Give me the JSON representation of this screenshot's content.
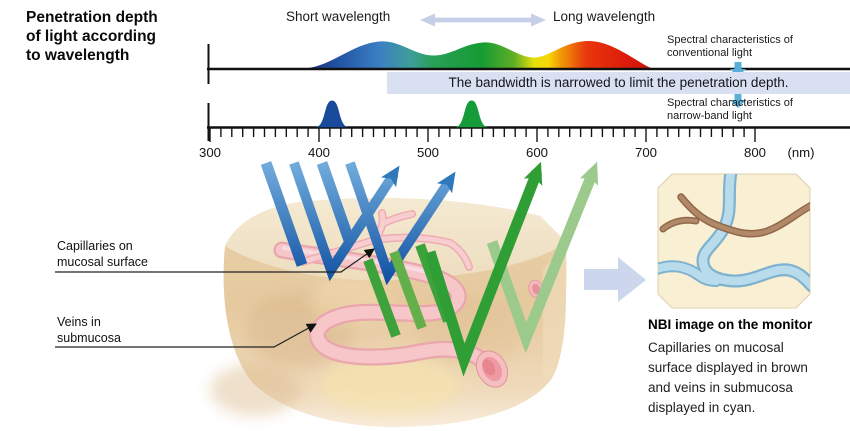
{
  "title": {
    "lines": [
      "Penetration depth",
      "of light according",
      "to wavelength"
    ]
  },
  "header": {
    "short_label": "Short wavelength",
    "long_label": "Long wavelength"
  },
  "spectra": {
    "conventional_label": [
      "Spectral characteristics of",
      "conventional light"
    ],
    "narrowband_label": [
      "Spectral characteristics of",
      "narrow-band light"
    ],
    "bandwidth_note": "The bandwidth is narrowed to limit the penetration depth."
  },
  "chart_data": {
    "type": "area",
    "title": "Spectral characteristics of conventional vs narrow-band light",
    "xlabel": "(nm)",
    "x_axis": {
      "range": [
        300,
        800
      ],
      "ticks": [
        300,
        400,
        500,
        600,
        700,
        800
      ],
      "minor_step": 10,
      "unit_label": "(nm)"
    },
    "series": [
      {
        "name": "Conventional light",
        "shape": "broad visible-spectrum band",
        "extent_nm": [
          390,
          705
        ],
        "peaks_nm": [
          455,
          550,
          645
        ],
        "palette": "blue-green-red visible spectrum gradient"
      },
      {
        "name": "Narrow-band light",
        "shape": "two narrow gaussian bands",
        "peaks_nm": [
          412,
          540
        ],
        "peak_colors": [
          "#1a4a9c",
          "#169b3a"
        ]
      }
    ]
  },
  "tissue": {
    "capillaries_label": [
      "Capillaries on",
      "mucosal surface"
    ],
    "veins_label": [
      "Veins in",
      "submucosa"
    ]
  },
  "nbi": {
    "heading": "NBI image on the monitor",
    "body_lines": [
      "Capillaries on mucosal",
      "surface displayed in brown",
      "and veins in submucosa",
      "displayed in cyan."
    ]
  },
  "colors": {
    "band_bg": "#d8e0f1",
    "cyan_arrow": "#58b0d8",
    "double_arrow": "#c6cfe8",
    "block_arrow": "#ccd6ec",
    "blue_peak": "#1a4a9c",
    "green_peak": "#169b3a",
    "blue_light_arrow": "#2f78ba",
    "green_light_arrow": "#2f9f35",
    "vessel_pink": "#f6c6c9",
    "nbi_vessel_cyan": "#b9dcec",
    "nbi_vessel_brown": "#a97c5c",
    "nbi_panel_bg": "#f9efd3"
  }
}
